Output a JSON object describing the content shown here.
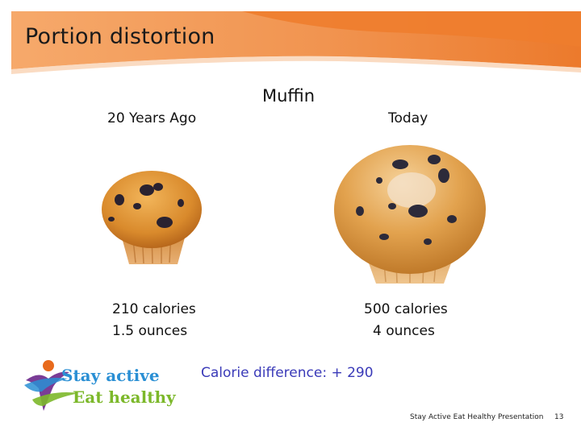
{
  "slide": {
    "title": "Portion distortion",
    "food": "Muffin",
    "past": {
      "heading": "20 Years Ago",
      "calories": "210 calories",
      "weight": "1.5 ounces"
    },
    "today": {
      "heading": "Today",
      "calories": "500 calories",
      "weight": "4 ounces"
    },
    "difference": "Calorie difference: + 290",
    "footer": "Stay Active Eat Healthy Presentation",
    "page_number": "13"
  },
  "logo": {
    "line1": "Stay active",
    "line2": "Eat healthy"
  },
  "colors": {
    "banner_orange": "#ee7d2e",
    "banner_light": "#f5a86a",
    "difference_text": "#3a3ab8",
    "logo_blue": "#2a8fd4",
    "logo_green": "#7cb82a",
    "logo_purple": "#7a3c96"
  },
  "images": {
    "past_muffin": "small-blueberry-muffin",
    "today_muffin": "large-blueberry-muffin"
  }
}
